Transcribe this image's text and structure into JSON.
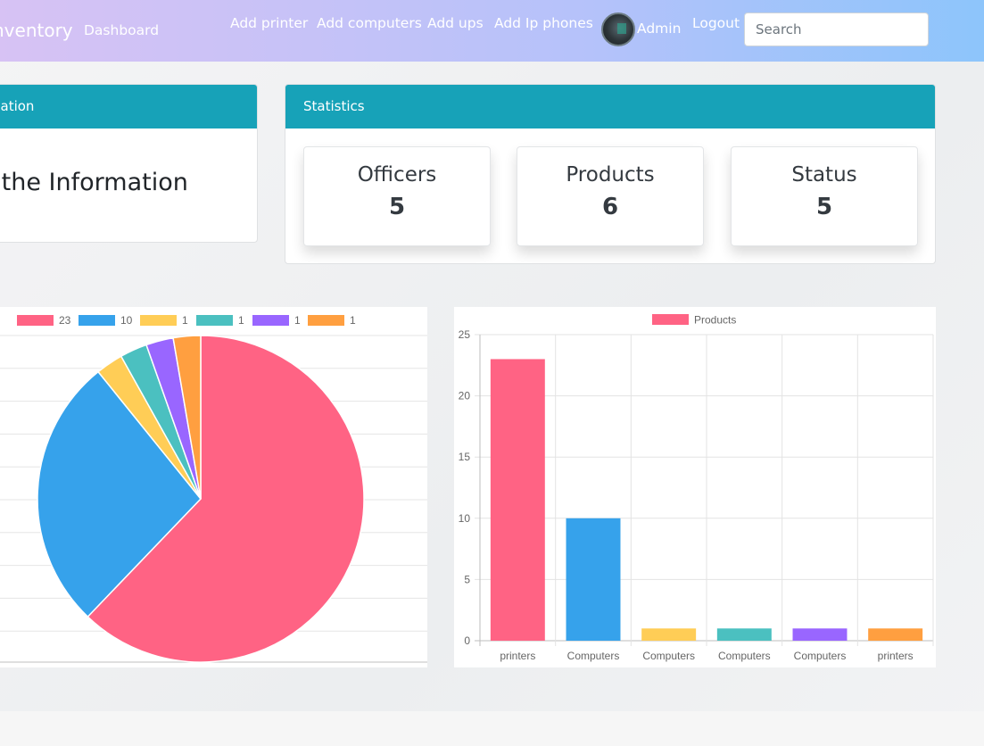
{
  "navbar": {
    "brand": "nventory",
    "dashboard": "Dashboard",
    "links": [
      "Add printer",
      "Add computers",
      "Add ups",
      "Add Ip phones"
    ],
    "user": "Admin",
    "logout": "Logout",
    "search_placeholder": "Search"
  },
  "info_card": {
    "header": "nation",
    "title": "s the Information"
  },
  "stats_card": {
    "header": "Statistics",
    "items": [
      {
        "label": "Officers",
        "value": "5"
      },
      {
        "label": "Products",
        "value": "6"
      },
      {
        "label": "Status",
        "value": "5"
      }
    ]
  },
  "colors": {
    "accent": "#17a2b8",
    "series": [
      "#ff6384",
      "#36a2eb",
      "#ffcd56",
      "#4bc0c0",
      "#9966ff",
      "#ff9f40"
    ]
  },
  "chart_data": [
    {
      "type": "pie",
      "legend": [
        "23",
        "10",
        "1",
        "1",
        "1",
        "1"
      ],
      "values": [
        23,
        10,
        1,
        1,
        1,
        1
      ],
      "legend_position": "top"
    },
    {
      "type": "bar",
      "title": "",
      "series": [
        {
          "name": "Products",
          "values": [
            23,
            10,
            1,
            1,
            1,
            1
          ]
        }
      ],
      "categories": [
        "printers",
        "Computers",
        "Computers",
        "Computers",
        "Computers",
        "printers"
      ],
      "ylim": [
        0,
        25
      ],
      "yticks": [
        0,
        5,
        10,
        15,
        20,
        25
      ],
      "grid": true,
      "legend_position": "top"
    }
  ]
}
